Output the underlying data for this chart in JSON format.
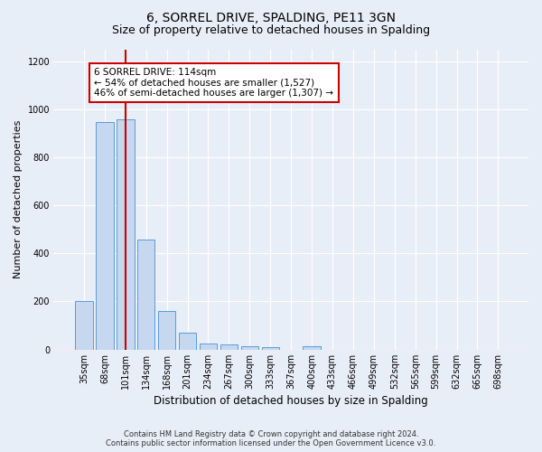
{
  "title": "6, SORREL DRIVE, SPALDING, PE11 3GN",
  "subtitle": "Size of property relative to detached houses in Spalding",
  "xlabel": "Distribution of detached houses by size in Spalding",
  "ylabel": "Number of detached properties",
  "categories": [
    "35sqm",
    "68sqm",
    "101sqm",
    "134sqm",
    "168sqm",
    "201sqm",
    "234sqm",
    "267sqm",
    "300sqm",
    "333sqm",
    "367sqm",
    "400sqm",
    "433sqm",
    "466sqm",
    "499sqm",
    "532sqm",
    "565sqm",
    "599sqm",
    "632sqm",
    "665sqm",
    "698sqm"
  ],
  "values": [
    203,
    950,
    960,
    460,
    162,
    70,
    25,
    20,
    15,
    10,
    0,
    12,
    0,
    0,
    0,
    0,
    0,
    0,
    0,
    0,
    0
  ],
  "bar_color": "#c5d8f0",
  "bar_edge_color": "#5b9bd5",
  "red_line_x": 2.0,
  "red_line_color": "#cc0000",
  "annotation_text": "6 SORREL DRIVE: 114sqm\n← 54% of detached houses are smaller (1,527)\n46% of semi-detached houses are larger (1,307) →",
  "annotation_box_color": "#ffffff",
  "annotation_box_edge": "#cc0000",
  "ylim": [
    0,
    1250
  ],
  "yticks": [
    0,
    200,
    400,
    600,
    800,
    1000,
    1200
  ],
  "bg_color": "#e8eef8",
  "grid_color": "#ffffff",
  "footnote": "Contains HM Land Registry data © Crown copyright and database right 2024.\nContains public sector information licensed under the Open Government Licence v3.0.",
  "title_fontsize": 10,
  "subtitle_fontsize": 9,
  "xlabel_fontsize": 8.5,
  "ylabel_fontsize": 8,
  "tick_fontsize": 7,
  "footnote_fontsize": 6,
  "anno_fontsize": 7.5
}
